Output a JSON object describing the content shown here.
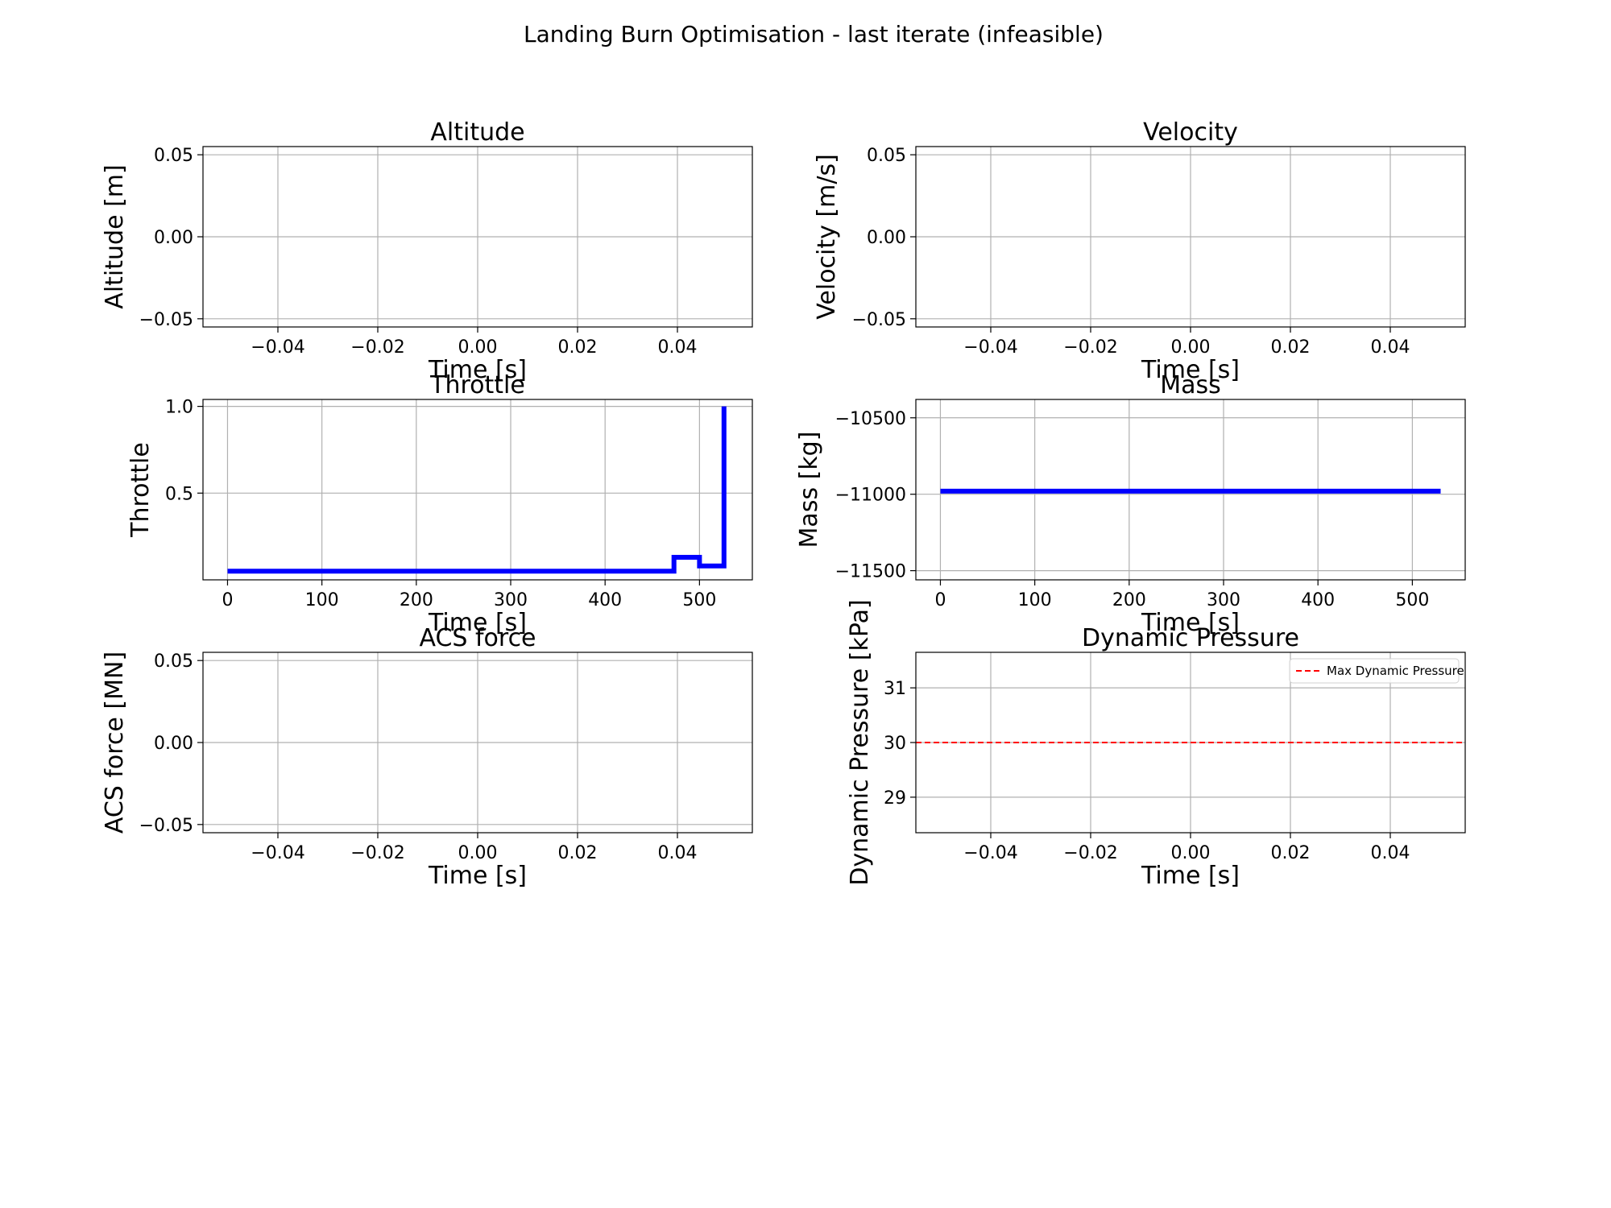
{
  "figure_title": "Landing Burn Optimisation - last iterate (infeasible)",
  "colors": {
    "series": "#0000ff",
    "limit": "#ff0000",
    "grid": "#b0b0b0",
    "axes": "#000000"
  },
  "chart_data": [
    {
      "id": "altitude",
      "type": "line",
      "title": "Altitude",
      "xlabel": "Time [s]",
      "ylabel": "Altitude [m]",
      "xlim": [
        -0.055,
        0.055
      ],
      "ylim": [
        -0.055,
        0.055
      ],
      "xticks": [
        -0.04,
        -0.02,
        0.0,
        0.02,
        0.04
      ],
      "xtick_labels": [
        "−0.04",
        "−0.02",
        "0.00",
        "0.02",
        "0.04"
      ],
      "yticks": [
        -0.05,
        0.0,
        0.05
      ],
      "ytick_labels": [
        "−0.05",
        "0.00",
        "0.05"
      ],
      "grid": true,
      "series": []
    },
    {
      "id": "velocity",
      "type": "line",
      "title": "Velocity",
      "xlabel": "Time [s]",
      "ylabel": "Velocity [m/s]",
      "xlim": [
        -0.055,
        0.055
      ],
      "ylim": [
        -0.055,
        0.055
      ],
      "xticks": [
        -0.04,
        -0.02,
        0.0,
        0.02,
        0.04
      ],
      "xtick_labels": [
        "−0.04",
        "−0.02",
        "0.00",
        "0.02",
        "0.04"
      ],
      "yticks": [
        -0.05,
        0.0,
        0.05
      ],
      "ytick_labels": [
        "−0.05",
        "0.00",
        "0.05"
      ],
      "grid": true,
      "series": []
    },
    {
      "id": "throttle",
      "type": "line",
      "title": "Throttle",
      "xlabel": "Time [s]",
      "ylabel": "Throttle",
      "xlim": [
        -26,
        556
      ],
      "ylim": [
        0.0,
        1.04
      ],
      "xticks": [
        0,
        100,
        200,
        300,
        400,
        500
      ],
      "xtick_labels": [
        "0",
        "100",
        "200",
        "300",
        "400",
        "500"
      ],
      "yticks": [
        0.5,
        1.0
      ],
      "ytick_labels": [
        "0.5",
        "1.0"
      ],
      "grid": true,
      "series": [
        {
          "step": true,
          "x": [
            0,
            473,
            473,
            500,
            500,
            526,
            526
          ],
          "y": [
            0.05,
            0.05,
            0.13,
            0.13,
            0.08,
            0.08,
            1.0
          ]
        }
      ]
    },
    {
      "id": "mass",
      "type": "line",
      "title": "Mass",
      "xlabel": "Time [s]",
      "ylabel": "Mass [kg]",
      "xlim": [
        -26,
        556
      ],
      "ylim": [
        -11560,
        -10380
      ],
      "xticks": [
        0,
        100,
        200,
        300,
        400,
        500
      ],
      "xtick_labels": [
        "0",
        "100",
        "200",
        "300",
        "400",
        "500"
      ],
      "yticks": [
        -11500,
        -11000,
        -10500
      ],
      "ytick_labels": [
        "−11500",
        "−11000",
        "−10500"
      ],
      "grid": true,
      "series": [
        {
          "x": [
            0,
            530
          ],
          "y": [
            -10980,
            -10980
          ]
        }
      ]
    },
    {
      "id": "acs",
      "type": "line",
      "title": "ACS force",
      "xlabel": "Time [s]",
      "ylabel": "ACS force [MN]",
      "xlim": [
        -0.055,
        0.055
      ],
      "ylim": [
        -0.055,
        0.055
      ],
      "xticks": [
        -0.04,
        -0.02,
        0.0,
        0.02,
        0.04
      ],
      "xtick_labels": [
        "−0.04",
        "−0.02",
        "0.00",
        "0.02",
        "0.04"
      ],
      "yticks": [
        -0.05,
        0.0,
        0.05
      ],
      "ytick_labels": [
        "−0.05",
        "0.00",
        "0.05"
      ],
      "grid": true,
      "series": []
    },
    {
      "id": "dynpressure",
      "type": "line",
      "title": "Dynamic Pressure",
      "xlabel": "Time [s]",
      "ylabel": "Dynamic Pressure [kPa]",
      "xlim": [
        -0.055,
        0.055
      ],
      "ylim": [
        28.35,
        31.65
      ],
      "xticks": [
        -0.04,
        -0.02,
        0.0,
        0.02,
        0.04
      ],
      "xtick_labels": [
        "−0.04",
        "−0.02",
        "0.00",
        "0.02",
        "0.04"
      ],
      "yticks": [
        29,
        30,
        31
      ],
      "ytick_labels": [
        "29",
        "30",
        "31"
      ],
      "grid": true,
      "series": [],
      "hlines": [
        {
          "y": 30,
          "label": "Max Dynamic Pressure",
          "style": "dashed"
        }
      ],
      "legend": "top-right"
    }
  ]
}
